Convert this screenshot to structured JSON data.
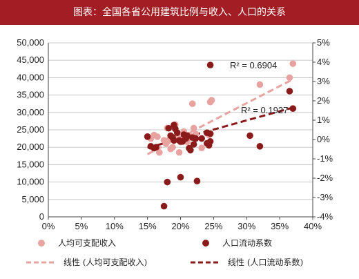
{
  "title": "图表：全国各省公用建筑比例与收入、人口的关系",
  "colors": {
    "header_bg": "#a31e24",
    "income": "#e8a3a0",
    "population": "#8b1a1a",
    "grid": "#c8c8c8"
  },
  "chart_data": {
    "type": "scatter",
    "x_axis": {
      "min": 0,
      "max": 0.4,
      "ticks": [
        "0%",
        "5%",
        "10%",
        "15%",
        "20%",
        "25%",
        "30%",
        "35%",
        "40%"
      ]
    },
    "y_left": {
      "min": 0,
      "max": 50000,
      "ticks": [
        "0",
        "5,000",
        "10,000",
        "15,000",
        "20,000",
        "25,000",
        "30,000",
        "35,000",
        "40,000",
        "45,000",
        "50,000"
      ]
    },
    "y_right": {
      "min": -0.04,
      "max": 0.05,
      "ticks": [
        "-4%",
        "-3%",
        "-2%",
        "-1%",
        "0%",
        "1%",
        "2%",
        "3%",
        "4%",
        "5%"
      ]
    },
    "grid": "horizontal",
    "series": [
      {
        "name": "人均可支配收入",
        "axis": "left",
        "color": "#e8a3a0",
        "points": [
          [
            0.15,
            23000
          ],
          [
            0.155,
            22500
          ],
          [
            0.16,
            23500
          ],
          [
            0.165,
            23000
          ],
          [
            0.168,
            18500
          ],
          [
            0.175,
            22000
          ],
          [
            0.178,
            21000
          ],
          [
            0.18,
            25500
          ],
          [
            0.182,
            22000
          ],
          [
            0.185,
            19500
          ],
          [
            0.188,
            20000
          ],
          [
            0.19,
            22800
          ],
          [
            0.192,
            26500
          ],
          [
            0.195,
            23000
          ],
          [
            0.198,
            18500
          ],
          [
            0.2,
            21500
          ],
          [
            0.203,
            22500
          ],
          [
            0.205,
            24500
          ],
          [
            0.208,
            23000
          ],
          [
            0.21,
            21500
          ],
          [
            0.213,
            23500
          ],
          [
            0.215,
            22800
          ],
          [
            0.218,
            32500
          ],
          [
            0.22,
            25500
          ],
          [
            0.223,
            23800
          ],
          [
            0.232,
            19800
          ],
          [
            0.24,
            24000
          ],
          [
            0.243,
            23500
          ],
          [
            0.245,
            33000
          ],
          [
            0.247,
            33500
          ],
          [
            0.32,
            38000
          ],
          [
            0.365,
            40000
          ],
          [
            0.37,
            44000
          ]
        ]
      },
      {
        "name": "人口流动系数",
        "axis": "right",
        "color": "#8b1a1a",
        "points": [
          [
            0.15,
            0.0015
          ],
          [
            0.155,
            -0.0035
          ],
          [
            0.16,
            -0.0045
          ],
          [
            0.163,
            -0.004
          ],
          [
            0.175,
            -0.0345
          ],
          [
            0.18,
            -0.022
          ],
          [
            0.182,
            0.0058
          ],
          [
            0.185,
            0.002
          ],
          [
            0.188,
            0.001
          ],
          [
            0.19,
            -0.0005
          ],
          [
            0.19,
            0.0075
          ],
          [
            0.192,
            0.0055
          ],
          [
            0.195,
            0.0035
          ],
          [
            0.198,
            -0.0005
          ],
          [
            0.2,
            -0.001
          ],
          [
            0.2,
            -0.0195
          ],
          [
            0.203,
            -0.001
          ],
          [
            0.205,
            0.0025
          ],
          [
            0.208,
            0.0005
          ],
          [
            0.21,
            0.002
          ],
          [
            0.213,
            -0.0045
          ],
          [
            0.215,
            -0.0055
          ],
          [
            0.218,
            0.001
          ],
          [
            0.22,
            -0.0025
          ],
          [
            0.223,
            0.0005
          ],
          [
            0.225,
            -0.0215
          ],
          [
            0.232,
            0.0005
          ],
          [
            0.24,
            -0.002
          ],
          [
            0.24,
            0.0035
          ],
          [
            0.243,
            -0.003
          ],
          [
            0.245,
            -0.001
          ],
          [
            0.245,
            0.003
          ],
          [
            0.245,
            0.0385
          ],
          [
            0.305,
            0.002
          ],
          [
            0.32,
            -0.0035
          ],
          [
            0.365,
            0.025
          ],
          [
            0.37,
            0.016
          ]
        ]
      }
    ],
    "trendlines": [
      {
        "name": "线性 (人均可支配收入)",
        "axis": "left",
        "color": "#e8a3a0",
        "x": [
          0.15,
          0.37
        ],
        "y": [
          18000,
          39500
        ],
        "r2": "R² = 0.6904"
      },
      {
        "name": "线性 (人口流动系数)",
        "axis": "right",
        "color": "#8b1a1a",
        "x": [
          0.15,
          0.37
        ],
        "y": [
          -0.0043,
          0.0165
        ],
        "r2": "R² = 0.1927"
      }
    ],
    "legend": [
      "人均可支配收入",
      "人口流动系数",
      "线性 (人均可支配收入)",
      "线性 (人口流动系数)"
    ]
  }
}
